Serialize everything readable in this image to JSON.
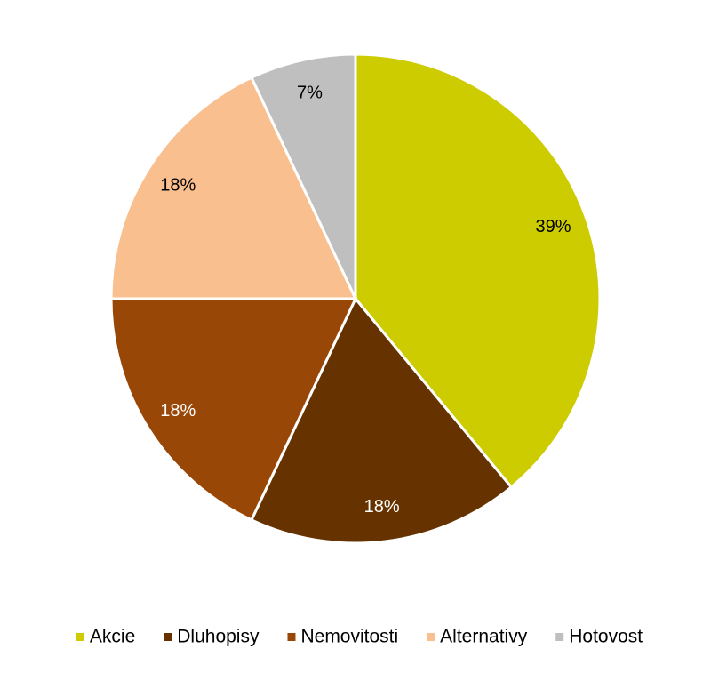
{
  "chart_data": {
    "type": "pie",
    "categories": [
      "Akcie",
      "Dluhopisy",
      "Nemovitosti",
      "Alternativy",
      "Hotovost"
    ],
    "values": [
      39,
      18,
      18,
      18,
      7
    ],
    "value_labels": [
      "39%",
      "18%",
      "18%",
      "18%",
      "7%"
    ],
    "colors": [
      "#cccc00",
      "#663300",
      "#994707",
      "#f9bf8f",
      "#bfbfbf"
    ],
    "legend": "bottom"
  }
}
